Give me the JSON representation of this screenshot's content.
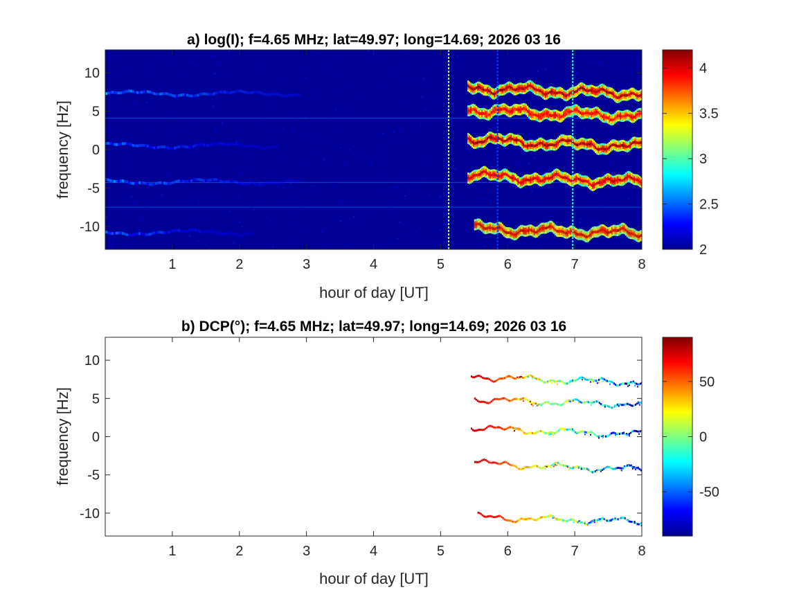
{
  "chart_data": [
    {
      "type": "heatmap",
      "title": "a) log(I); f=4.65 MHz;  lat=49.97; long=14.69; 2026 03 16",
      "xlabel": "hour of day [UT]",
      "ylabel": "frequency [Hz]",
      "xlim": [
        0,
        8
      ],
      "ylim": [
        -13,
        13
      ],
      "xticks": [
        1,
        2,
        3,
        4,
        5,
        6,
        7,
        8
      ],
      "yticks": [
        -10,
        -5,
        0,
        5,
        10
      ],
      "colorbar": {
        "clim": [
          2,
          4.2
        ],
        "ticks": [
          2,
          2.5,
          3,
          3.5,
          4
        ],
        "colormap": "jet"
      },
      "background_value": 2.05,
      "weak_traces": [
        {
          "y": 7.3,
          "x_range": [
            0,
            2.9
          ],
          "value": 2.6
        },
        {
          "y": 0.5,
          "x_range": [
            0,
            2.6
          ],
          "value": 2.5
        },
        {
          "y": -4.2,
          "x_range": [
            0,
            2.9
          ],
          "value": 2.55
        },
        {
          "y": -10.8,
          "x_range": [
            0,
            2.2
          ],
          "value": 2.5
        }
      ],
      "strong_traces": [
        {
          "y_start": 8.2,
          "y_end": 7.3,
          "x_range": [
            5.4,
            8
          ],
          "value": 4.0
        },
        {
          "y_start": 5.3,
          "y_end": 4.4,
          "x_range": [
            5.4,
            8
          ],
          "value": 3.8
        },
        {
          "y_start": 1.5,
          "y_end": 0.4,
          "x_range": [
            5.4,
            8
          ],
          "value": 4.0
        },
        {
          "y_start": -3.2,
          "y_end": -4.2,
          "x_range": [
            5.4,
            8
          ],
          "value": 3.9
        },
        {
          "y_start": -10.2,
          "y_end": -10.9,
          "x_range": [
            5.5,
            8
          ],
          "value": 3.9
        }
      ],
      "horizontal_lines": [
        4.1,
        -4.3,
        -7.5
      ],
      "vertical_spikes": [
        {
          "x": 5.12,
          "value": 3.2
        },
        {
          "x": 6.97,
          "value": 2.9
        },
        {
          "x": 5.85,
          "value": 2.4
        }
      ]
    },
    {
      "type": "heatmap",
      "title": "b) DCP(°); f=4.65 MHz;  lat=49.97; long=14.69; 2026 03 16",
      "xlabel": "hour of day [UT]",
      "ylabel": "frequency [Hz]",
      "xlim": [
        0,
        8
      ],
      "ylim": [
        -13,
        13
      ],
      "xticks": [
        1,
        2,
        3,
        4,
        5,
        6,
        7,
        8
      ],
      "yticks": [
        -10,
        -5,
        0,
        5,
        10
      ],
      "colorbar": {
        "clim": [
          -90,
          90
        ],
        "ticks": [
          -50,
          0,
          50
        ],
        "colormap": "jet"
      },
      "traces": [
        {
          "y_start": 8.0,
          "y_end": 7.1,
          "x_range": [
            5.45,
            8
          ],
          "value_start": 80,
          "value_end": -70
        },
        {
          "y_start": 5.0,
          "y_end": 4.2,
          "x_range": [
            5.5,
            8
          ],
          "value_start": 80,
          "value_end": -70
        },
        {
          "y_start": 1.3,
          "y_end": 0.3,
          "x_range": [
            5.45,
            8
          ],
          "value_start": 80,
          "value_end": -70
        },
        {
          "y_start": -3.3,
          "y_end": -4.3,
          "x_range": [
            5.5,
            8
          ],
          "value_start": 80,
          "value_end": -70
        },
        {
          "y_start": -10.4,
          "y_end": -11.1,
          "x_range": [
            5.55,
            8
          ],
          "value_start": 80,
          "value_end": -70
        }
      ]
    }
  ]
}
